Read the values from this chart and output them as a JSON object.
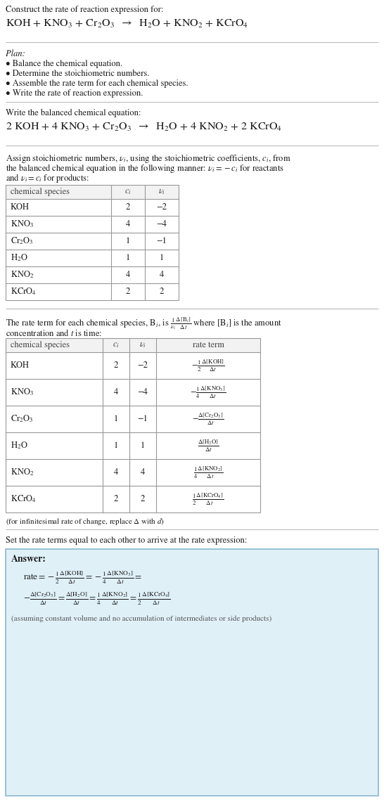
{
  "bg_color": "#ffffff",
  "title_line1": "Construct the rate of reaction expression for:",
  "plan_label": "Plan:",
  "plan_items": [
    "• Balance the chemical equation.",
    "• Determine the stoichiometric numbers.",
    "• Assemble the rate term for each chemical species.",
    "• Write the rate of reaction expression."
  ],
  "balanced_label": "Write the balanced chemical equation:",
  "stoich_intro_lines": [
    "Assign stoichiometric numbers, $\\nu_i$, using the stoichiometric coefficients, $c_i$, from",
    "the balanced chemical equation in the following manner: $\\nu_i = -c_i$ for reactants",
    "and $\\nu_i = c_i$ for products:"
  ],
  "table1_headers": [
    "chemical species",
    "$c_i$",
    "$\\nu_i$"
  ],
  "table1_data": [
    [
      "KOH",
      "2",
      "−2"
    ],
    [
      "KNO$_3$",
      "4",
      "−4"
    ],
    [
      "Cr$_2$O$_3$",
      "1",
      "−1"
    ],
    [
      "H$_2$O",
      "1",
      "1"
    ],
    [
      "KNO$_2$",
      "4",
      "4"
    ],
    [
      "KCrO$_4$",
      "2",
      "2"
    ]
  ],
  "rate_intro_line1": "The rate term for each chemical species, B$_i$, is $\\frac{1}{\\nu_i}\\frac{\\Delta[\\mathrm{B}_i]}{\\Delta t}$ where [B$_i$] is the amount",
  "rate_intro_line2": "concentration and $t$ is time:",
  "table2_headers": [
    "chemical species",
    "$c_i$",
    "$\\nu_i$",
    "rate term"
  ],
  "table2_data": [
    [
      "KOH",
      "2",
      "−2",
      "$-\\frac{1}{2}\\frac{\\Delta[\\mathrm{KOH}]}{\\Delta t}$"
    ],
    [
      "KNO$_3$",
      "4",
      "−4",
      "$-\\frac{1}{4}\\frac{\\Delta[\\mathrm{KNO_3}]}{\\Delta t}$"
    ],
    [
      "Cr$_2$O$_3$",
      "1",
      "−1",
      "$-\\frac{\\Delta[\\mathrm{Cr_2O_3}]}{\\Delta t}$"
    ],
    [
      "H$_2$O",
      "1",
      "1",
      "$\\frac{\\Delta[\\mathrm{H_2O}]}{\\Delta t}$"
    ],
    [
      "KNO$_2$",
      "4",
      "4",
      "$\\frac{1}{4}\\frac{\\Delta[\\mathrm{KNO_2}]}{\\Delta t}$"
    ],
    [
      "KCrO$_4$",
      "2",
      "2",
      "$\\frac{1}{2}\\frac{\\Delta[\\mathrm{KCrO_4}]}{\\Delta t}$"
    ]
  ],
  "infinitesimal_note": "(for infinitesimal rate of change, replace Δ with $d$)",
  "set_rate_text": "Set the rate terms equal to each other to arrive at the rate expression:",
  "answer_label": "Answer:",
  "answer_note": "(assuming constant volume and no accumulation of intermediates or side products)",
  "answer_box_color": "#dff0f7",
  "answer_box_edge": "#8ab8cc",
  "text_color": "#1a1a1a",
  "table_border_color": "#999999",
  "separator_color": "#bbbbbb",
  "font_serif": "STIXGeneral",
  "fs_body": 9.0,
  "fs_reaction": 11.5,
  "fs_small": 8.0,
  "lmargin": 8
}
